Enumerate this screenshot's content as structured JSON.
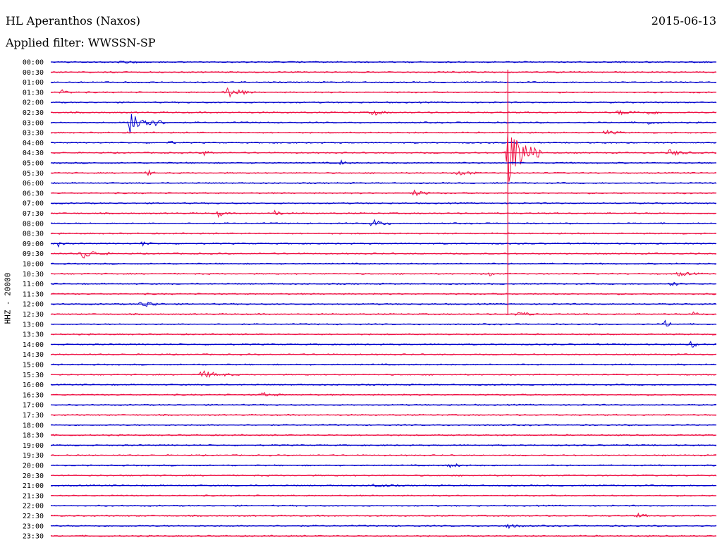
{
  "header": {
    "station": "HL Aperanthos (Naxos)",
    "date": "2015-06-13",
    "filter": "Applied filter: WWSSN-SP"
  },
  "chart_data": {
    "type": "line",
    "title": "HL Aperanthos (Naxos)",
    "ylabel": "HHZ - 20000",
    "colors": [
      "#0000cc",
      "#ee1144"
    ],
    "trace_ticks": [
      "00:00",
      "00:30",
      "01:00",
      "01:30",
      "02:00",
      "02:30",
      "03:00",
      "03:30",
      "04:00",
      "04:30",
      "05:00",
      "05:30",
      "06:00",
      "06:30",
      "07:00",
      "07:30",
      "08:00",
      "08:30",
      "09:00",
      "09:30",
      "10:00",
      "10:30",
      "11:00",
      "11:30",
      "12:00",
      "12:30",
      "13:00",
      "13:30",
      "14:00",
      "14:30",
      "15:00",
      "15:30",
      "16:00",
      "16:30",
      "17:00",
      "17:30",
      "18:00",
      "18:30",
      "19:00",
      "19:30",
      "20:00",
      "20:30",
      "21:00",
      "21:30",
      "22:00",
      "22:30",
      "23:00",
      "23:30"
    ],
    "trace_minutes": 30,
    "events": [
      {
        "row": 0,
        "minute": 3.1,
        "amp": 1.5,
        "dur": 1.5
      },
      {
        "row": 3,
        "minute": 7.9,
        "amp": 8,
        "dur": 1.2
      },
      {
        "row": 3,
        "minute": 0.5,
        "amp": 3,
        "dur": 0.7
      },
      {
        "row": 5,
        "minute": 14.5,
        "amp": 5,
        "dur": 0.7
      },
      {
        "row": 5,
        "minute": 25.6,
        "amp": 3,
        "dur": 1.5
      },
      {
        "row": 5,
        "minute": 27.0,
        "amp": 3,
        "dur": 0.8
      },
      {
        "row": 6,
        "minute": 3.6,
        "amp": 18,
        "dur": 1.6
      },
      {
        "row": 6,
        "minute": 26.8,
        "amp": 3,
        "dur": 0.8
      },
      {
        "row": 7,
        "minute": 25.0,
        "amp": 3,
        "dur": 0.9
      },
      {
        "row": 8,
        "minute": 5.4,
        "amp": 4,
        "dur": 0.2
      },
      {
        "row": 9,
        "minute": 6.9,
        "amp": 4,
        "dur": 0.5
      },
      {
        "row": 9,
        "minute": 20.6,
        "amp": 45,
        "dur": 1.5
      },
      {
        "row": 9,
        "minute": 27.9,
        "amp": 5,
        "dur": 1.0
      },
      {
        "row": 10,
        "minute": 13.1,
        "amp": 3,
        "dur": 0.5
      },
      {
        "row": 11,
        "minute": 4.4,
        "amp": 4,
        "dur": 0.3
      },
      {
        "row": 11,
        "minute": 18.4,
        "amp": 5,
        "dur": 0.8
      },
      {
        "row": 13,
        "minute": 16.3,
        "amp": 5,
        "dur": 0.8
      },
      {
        "row": 15,
        "minute": 7.6,
        "amp": 6,
        "dur": 0.4
      },
      {
        "row": 15,
        "minute": 10.1,
        "amp": 6,
        "dur": 0.4
      },
      {
        "row": 16,
        "minute": 14.5,
        "amp": 6,
        "dur": 0.8
      },
      {
        "row": 18,
        "minute": 0.3,
        "amp": 6,
        "dur": 0.3
      },
      {
        "row": 18,
        "minute": 4.2,
        "amp": 5,
        "dur": 0.3
      },
      {
        "row": 19,
        "minute": 1.4,
        "amp": 8,
        "dur": 1.2
      },
      {
        "row": 21,
        "minute": 19.8,
        "amp": 5,
        "dur": 0.3
      },
      {
        "row": 21,
        "minute": 28.3,
        "amp": 3,
        "dur": 1.0
      },
      {
        "row": 22,
        "minute": 28.0,
        "amp": 4,
        "dur": 0.4
      },
      {
        "row": 24,
        "minute": 4.1,
        "amp": 6,
        "dur": 1.0
      },
      {
        "row": 25,
        "minute": 21.0,
        "amp": 4,
        "dur": 1.0
      },
      {
        "row": 25,
        "minute": 29.0,
        "amp": 4,
        "dur": 0.6
      },
      {
        "row": 26,
        "minute": 27.7,
        "amp": 5,
        "dur": 0.5
      },
      {
        "row": 28,
        "minute": 28.9,
        "amp": 5,
        "dur": 0.5
      },
      {
        "row": 31,
        "minute": 6.8,
        "amp": 5,
        "dur": 1.6
      },
      {
        "row": 33,
        "minute": 9.5,
        "amp": 3,
        "dur": 1.0
      },
      {
        "row": 40,
        "minute": 18.0,
        "amp": 3,
        "dur": 0.8
      },
      {
        "row": 42,
        "minute": 14.5,
        "amp": 3,
        "dur": 1.2
      },
      {
        "row": 45,
        "minute": 26.5,
        "amp": 3,
        "dur": 0.6
      },
      {
        "row": 46,
        "minute": 20.6,
        "amp": 3,
        "dur": 0.8
      }
    ]
  }
}
